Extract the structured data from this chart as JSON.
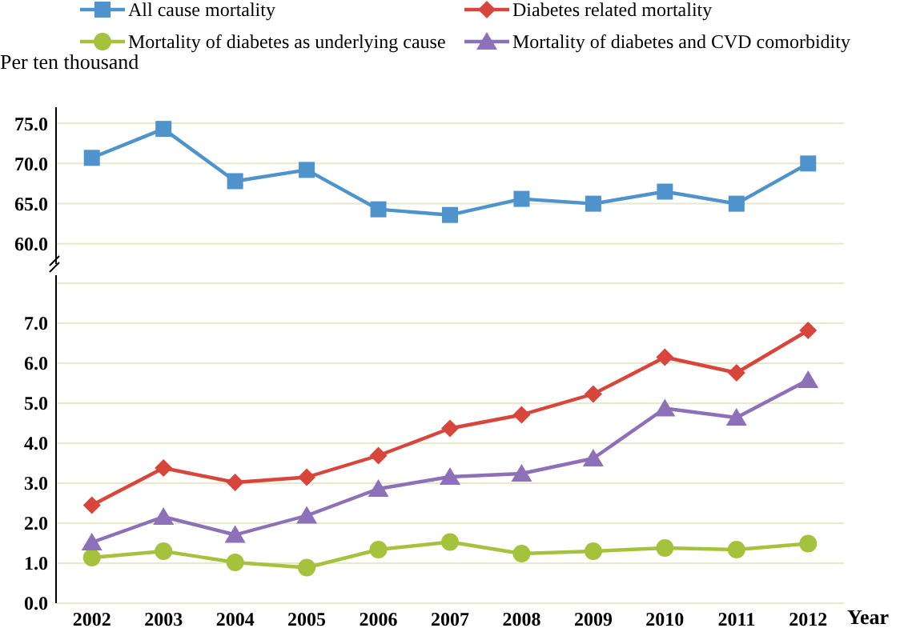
{
  "chart_data": [
    {
      "type": "line",
      "ylabel": "Per ten thousand",
      "categories": [
        "2002",
        "2003",
        "2004",
        "2005",
        "2006",
        "2007",
        "2008",
        "2009",
        "2010",
        "2011",
        "2012"
      ],
      "ylim": [
        57.5,
        77
      ],
      "yticks": [
        {
          "value": 60,
          "label": "60.0"
        },
        {
          "value": 65,
          "label": "65.0"
        },
        {
          "value": 70,
          "label": "70.0"
        },
        {
          "value": 75,
          "label": "75.0"
        }
      ],
      "grid": "y",
      "legend": "top",
      "tick_labels": "y",
      "series": [
        {
          "name": "All cause mortality",
          "color": "#4f93cc",
          "marker": "square",
          "values": [
            70.7,
            74.3,
            67.8,
            69.2,
            64.3,
            63.6,
            65.6,
            65.0,
            66.5,
            65.0,
            70.0
          ]
        }
      ]
    },
    {
      "type": "line",
      "xlabel": "Year",
      "categories": [
        "2002",
        "2003",
        "2004",
        "2005",
        "2006",
        "2007",
        "2008",
        "2009",
        "2010",
        "2011",
        "2012"
      ],
      "ylim": [
        0,
        8.2
      ],
      "yticks": [
        {
          "value": 0,
          "label": "0.0"
        },
        {
          "value": 1,
          "label": "1.0"
        },
        {
          "value": 2,
          "label": "2.0"
        },
        {
          "value": 3,
          "label": "3.0"
        },
        {
          "value": 4,
          "label": "4.0"
        },
        {
          "value": 5,
          "label": "5.0"
        },
        {
          "value": 6,
          "label": "6.0"
        },
        {
          "value": 7,
          "label": "7.0"
        },
        {
          "value": 8,
          "label": null
        }
      ],
      "grid": "y",
      "legend": "top",
      "series": [
        {
          "name": "Diabetes related mortality",
          "color": "#d8453b",
          "marker": "diamond",
          "values": [
            2.45,
            3.38,
            3.02,
            3.15,
            3.69,
            4.37,
            4.71,
            5.23,
            6.15,
            5.76,
            6.82
          ]
        },
        {
          "name": "Mortality of diabetes as underlying cause",
          "color": "#a5c23c",
          "marker": "circle",
          "values": [
            1.14,
            1.3,
            1.02,
            0.89,
            1.34,
            1.53,
            1.24,
            1.3,
            1.38,
            1.34,
            1.49
          ]
        },
        {
          "name": "Mortality of diabetes and CVD comorbidity",
          "color": "#8d70b8",
          "marker": "triangle",
          "values": [
            1.52,
            2.16,
            1.71,
            2.19,
            2.86,
            3.16,
            3.24,
            3.62,
            4.87,
            4.64,
            5.58
          ]
        }
      ]
    }
  ]
}
